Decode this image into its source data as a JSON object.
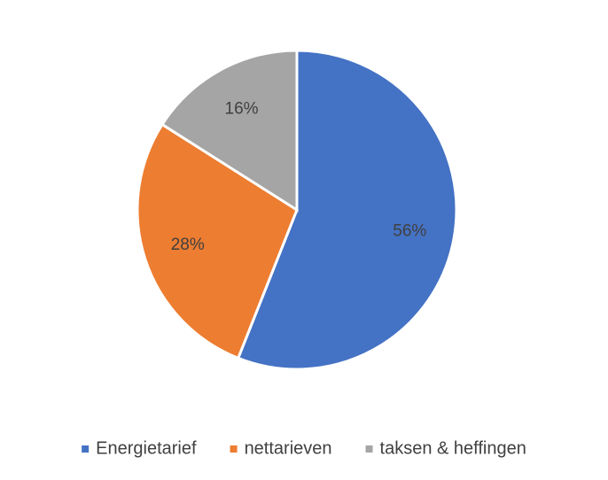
{
  "chart_data": {
    "type": "pie",
    "categories": [
      "Energietarief",
      "nettarieven",
      "taksen & heffingen"
    ],
    "values": [
      56,
      28,
      16
    ],
    "value_labels": [
      "56%",
      "28%",
      "16%"
    ],
    "colors": [
      "#4472c4",
      "#ed7d31",
      "#a5a5a5"
    ],
    "legend": "bottom"
  }
}
